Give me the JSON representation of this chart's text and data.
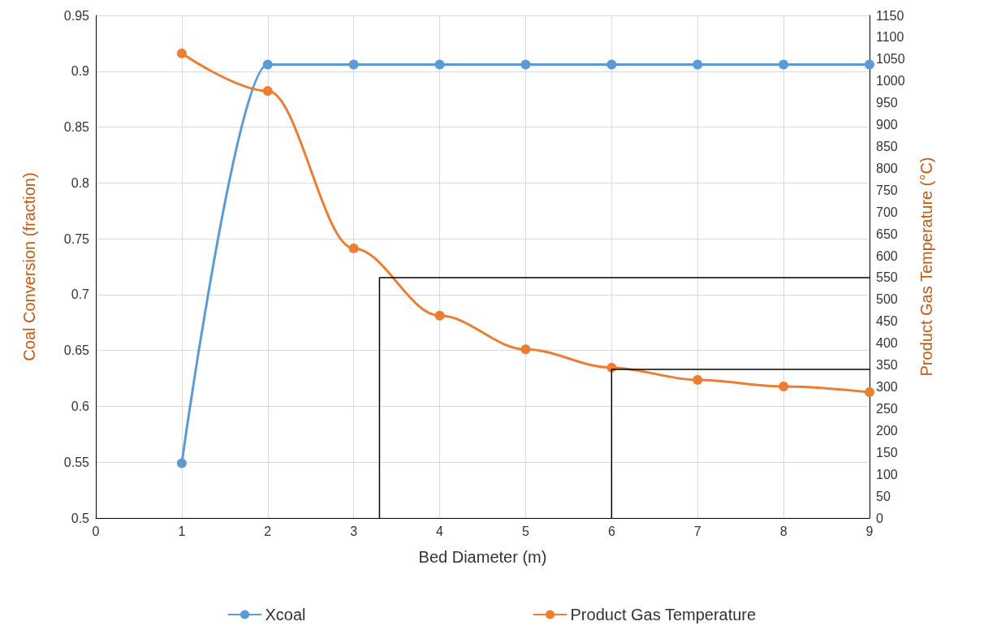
{
  "chart_data": {
    "type": "line",
    "xlabel": "Bed Diameter (m)",
    "ylabel": "Coal Conversion (fraction)",
    "y2label": "Product Gas Temperature (°C)",
    "x": [
      1,
      2,
      3,
      4,
      5,
      6,
      7,
      8,
      9
    ],
    "xlim": [
      0,
      9
    ],
    "xticks": [
      0,
      1,
      2,
      3,
      4,
      5,
      6,
      7,
      8,
      9
    ],
    "ylim": [
      0.5,
      0.95
    ],
    "yticks": [
      0.5,
      0.55,
      0.6,
      0.65,
      0.7,
      0.75,
      0.8,
      0.85,
      0.9,
      0.95
    ],
    "y2lim": [
      0,
      1150
    ],
    "y2ticks": [
      0,
      50,
      100,
      150,
      200,
      250,
      300,
      350,
      400,
      450,
      500,
      550,
      600,
      650,
      700,
      750,
      800,
      850,
      900,
      950,
      1000,
      1050,
      1100,
      1150
    ],
    "series": [
      {
        "name": "Xcoal",
        "color": "#5b9bd5",
        "values": [
          0.549,
          0.906,
          0.906,
          0.906,
          0.906,
          0.906,
          0.906,
          0.906,
          0.906
        ]
      },
      {
        "name": "Product Gas Temperature",
        "color": "#ed7d31",
        "axis": "y2",
        "values": [
          1063,
          977,
          617,
          463,
          386,
          344,
          316,
          301,
          288
        ]
      },
      {
        "color": "#000000",
        "axis": "y2",
        "marker": "none",
        "x": [
          3.3,
          3.3,
          9
        ],
        "values": [
          0,
          550,
          550
        ]
      },
      {
        "color": "#000000",
        "axis": "y2",
        "marker": "none",
        "x": [
          6,
          6,
          9
        ],
        "values": [
          0,
          340,
          340
        ]
      }
    ],
    "grid": true,
    "legend": "bottom",
    "marker": "circle",
    "line_style": "solid"
  }
}
